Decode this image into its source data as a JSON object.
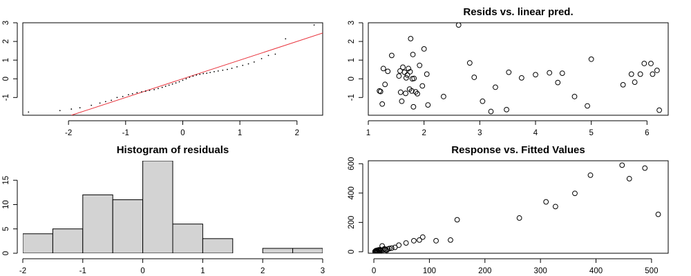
{
  "chart_data": [
    {
      "type": "scatter",
      "subtype": "qq-plot",
      "title": "",
      "xlabel": "",
      "ylabel": "",
      "xlim": [
        -2.8,
        2.45
      ],
      "ylim": [
        -1.95,
        3.0
      ],
      "xticks": [
        -2,
        -1,
        0,
        1,
        2
      ],
      "yticks": [
        -1,
        0,
        1,
        2,
        3
      ],
      "reference_line": {
        "color": "#e8303a",
        "points": [
          [
            -1.95,
            -1.95
          ],
          [
            2.45,
            2.45
          ]
        ]
      },
      "point_style": "dot",
      "points": [
        [
          -2.7,
          -1.78
        ],
        [
          -2.15,
          -1.7
        ],
        [
          -1.95,
          -1.62
        ],
        [
          -1.8,
          -1.55
        ],
        [
          -1.6,
          -1.42
        ],
        [
          -1.45,
          -1.3
        ],
        [
          -1.35,
          -1.22
        ],
        [
          -1.25,
          -1.15
        ],
        [
          -1.15,
          -1.0
        ],
        [
          -1.05,
          -0.95
        ],
        [
          -0.95,
          -0.85
        ],
        [
          -0.88,
          -0.8
        ],
        [
          -0.8,
          -0.74
        ],
        [
          -0.72,
          -0.7
        ],
        [
          -0.65,
          -0.66
        ],
        [
          -0.58,
          -0.62
        ],
        [
          -0.5,
          -0.58
        ],
        [
          -0.43,
          -0.52
        ],
        [
          -0.36,
          -0.46
        ],
        [
          -0.3,
          -0.4
        ],
        [
          -0.24,
          -0.34
        ],
        [
          -0.18,
          -0.28
        ],
        [
          -0.12,
          -0.22
        ],
        [
          -0.06,
          -0.16
        ],
        [
          0.0,
          -0.08
        ],
        [
          0.06,
          0.0
        ],
        [
          0.12,
          0.08
        ],
        [
          0.18,
          0.14
        ],
        [
          0.24,
          0.2
        ],
        [
          0.3,
          0.24
        ],
        [
          0.36,
          0.28
        ],
        [
          0.42,
          0.3
        ],
        [
          0.48,
          0.34
        ],
        [
          0.55,
          0.38
        ],
        [
          0.62,
          0.42
        ],
        [
          0.7,
          0.46
        ],
        [
          0.78,
          0.5
        ],
        [
          0.86,
          0.56
        ],
        [
          0.95,
          0.64
        ],
        [
          1.05,
          0.72
        ],
        [
          1.15,
          0.8
        ],
        [
          1.25,
          0.9
        ],
        [
          1.38,
          1.08
        ],
        [
          1.5,
          1.25
        ],
        [
          1.62,
          1.32
        ],
        [
          1.8,
          2.14
        ],
        [
          2.3,
          2.88
        ]
      ]
    },
    {
      "type": "scatter",
      "title": "Resids vs. linear pred.",
      "xlabel": "",
      "ylabel": "",
      "xlim": [
        1.0,
        6.38
      ],
      "ylim": [
        -1.95,
        3.0
      ],
      "xticks": [
        1,
        2,
        3,
        4,
        5,
        6
      ],
      "yticks": [
        -1,
        0,
        1,
        2,
        3
      ],
      "point_style": "circle",
      "points": [
        [
          1.2,
          -0.65
        ],
        [
          1.22,
          -0.68
        ],
        [
          1.25,
          -1.35
        ],
        [
          1.27,
          0.55
        ],
        [
          1.3,
          -0.3
        ],
        [
          1.35,
          0.4
        ],
        [
          1.42,
          1.25
        ],
        [
          1.55,
          0.15
        ],
        [
          1.57,
          0.42
        ],
        [
          1.58,
          -0.72
        ],
        [
          1.6,
          -1.2
        ],
        [
          1.62,
          0.62
        ],
        [
          1.65,
          0.35
        ],
        [
          1.67,
          -0.78
        ],
        [
          1.68,
          0.05
        ],
        [
          1.7,
          0.2
        ],
        [
          1.72,
          0.55
        ],
        [
          1.74,
          -0.55
        ],
        [
          1.75,
          0.38
        ],
        [
          1.76,
          2.15
        ],
        [
          1.78,
          -0.65
        ],
        [
          1.79,
          0.0
        ],
        [
          1.8,
          1.3
        ],
        [
          1.81,
          -1.5
        ],
        [
          1.82,
          0.02
        ],
        [
          1.85,
          -0.7
        ],
        [
          1.88,
          -0.8
        ],
        [
          1.92,
          0.72
        ],
        [
          1.97,
          -0.38
        ],
        [
          2.0,
          1.6
        ],
        [
          2.05,
          0.25
        ],
        [
          2.07,
          -1.4
        ],
        [
          2.35,
          -0.95
        ],
        [
          2.62,
          2.88
        ],
        [
          2.82,
          0.85
        ],
        [
          2.9,
          0.08
        ],
        [
          3.05,
          -1.2
        ],
        [
          3.2,
          -1.75
        ],
        [
          3.28,
          -0.45
        ],
        [
          3.48,
          -1.65
        ],
        [
          3.52,
          0.35
        ],
        [
          3.75,
          0.05
        ],
        [
          4.0,
          0.22
        ],
        [
          4.25,
          0.32
        ],
        [
          4.4,
          -0.2
        ],
        [
          4.48,
          0.3
        ],
        [
          4.7,
          -0.95
        ],
        [
          4.93,
          -1.45
        ],
        [
          5.0,
          1.05
        ],
        [
          5.57,
          -0.32
        ],
        [
          5.72,
          0.25
        ],
        [
          5.78,
          -0.18
        ],
        [
          5.88,
          0.25
        ],
        [
          5.95,
          0.82
        ],
        [
          6.07,
          0.82
        ],
        [
          6.1,
          0.25
        ],
        [
          6.18,
          0.45
        ],
        [
          6.22,
          -1.68
        ]
      ]
    },
    {
      "type": "bar",
      "subtype": "histogram",
      "title": "Histogram of residuals",
      "xlabel": "",
      "ylabel": "",
      "xlim": [
        -2,
        3
      ],
      "ylim": [
        0,
        19
      ],
      "xticks": [
        -2,
        -1,
        0,
        1,
        2,
        3
      ],
      "yticks": [
        0,
        5,
        10,
        15
      ],
      "bins": [
        {
          "from": -2.0,
          "to": -1.5,
          "count": 4
        },
        {
          "from": -1.5,
          "to": -1.0,
          "count": 5
        },
        {
          "from": -1.0,
          "to": -0.5,
          "count": 12
        },
        {
          "from": -0.5,
          "to": 0.0,
          "count": 11
        },
        {
          "from": 0.0,
          "to": 0.5,
          "count": 19
        },
        {
          "from": 0.5,
          "to": 1.0,
          "count": 6
        },
        {
          "from": 1.0,
          "to": 1.5,
          "count": 3
        },
        {
          "from": 1.5,
          "to": 2.0,
          "count": 0
        },
        {
          "from": 2.0,
          "to": 2.5,
          "count": 1
        },
        {
          "from": 2.5,
          "to": 3.0,
          "count": 1
        }
      ],
      "bar_color": "#d3d3d3"
    },
    {
      "type": "scatter",
      "title": "Response vs. Fitted Values",
      "xlabel": "",
      "ylabel": "",
      "xlim": [
        -10,
        530
      ],
      "ylim": [
        -10,
        620
      ],
      "xticks": [
        0,
        100,
        200,
        300,
        400,
        500
      ],
      "yticks": [
        0,
        200,
        400,
        600
      ],
      "point_style": "circle",
      "points": [
        [
          2,
          2
        ],
        [
          3,
          5
        ],
        [
          4,
          8
        ],
        [
          4,
          3
        ],
        [
          5,
          1
        ],
        [
          6,
          6
        ],
        [
          6,
          10
        ],
        [
          7,
          4
        ],
        [
          8,
          12
        ],
        [
          9,
          8
        ],
        [
          10,
          5
        ],
        [
          11,
          15
        ],
        [
          12,
          7
        ],
        [
          13,
          10
        ],
        [
          15,
          40
        ],
        [
          17,
          12
        ],
        [
          19,
          20
        ],
        [
          21,
          14
        ],
        [
          23,
          10
        ],
        [
          25,
          18
        ],
        [
          28,
          22
        ],
        [
          32,
          25
        ],
        [
          38,
          30
        ],
        [
          45,
          45
        ],
        [
          58,
          60
        ],
        [
          72,
          75
        ],
        [
          82,
          80
        ],
        [
          88,
          100
        ],
        [
          112,
          75
        ],
        [
          138,
          80
        ],
        [
          150,
          218
        ],
        [
          262,
          230
        ],
        [
          310,
          340
        ],
        [
          327,
          308
        ],
        [
          362,
          398
        ],
        [
          390,
          522
        ],
        [
          447,
          590
        ],
        [
          460,
          498
        ],
        [
          488,
          570
        ],
        [
          512,
          255
        ]
      ]
    }
  ]
}
